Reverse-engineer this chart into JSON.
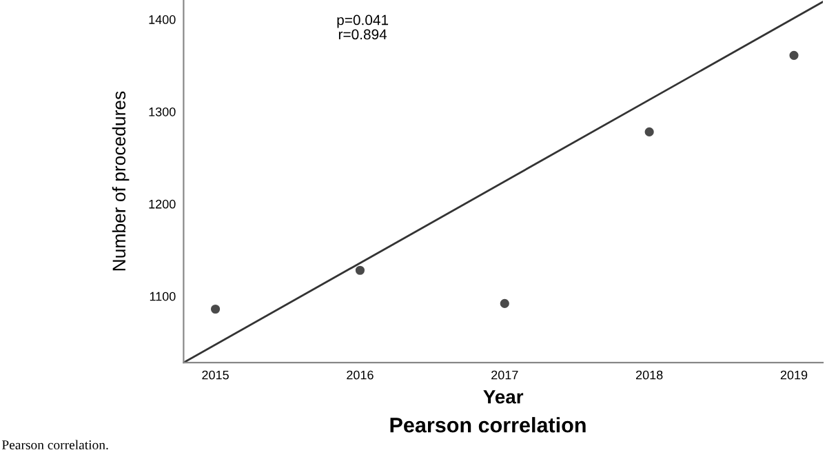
{
  "chart_data": {
    "type": "scatter",
    "xlabel": "Year",
    "ylabel": "Number of procedures",
    "x": [
      2015,
      2016,
      2017,
      2018,
      2019
    ],
    "series": [
      {
        "color": "#4a4a4a",
        "marker": "circle",
        "values": [
          1086,
          1128,
          1092,
          1278,
          1361
        ]
      },
      {
        "type": "line",
        "color": "#333333",
        "line_style": "solid",
        "marker": "none",
        "x": [
          2014.78,
          2019.2
        ],
        "values": [
          1028,
          1419
        ]
      }
    ],
    "xlim": [
      2014.78,
      2019.2
    ],
    "ylim": [
      1028,
      1421
    ],
    "xticks": [
      2015,
      2016,
      2017,
      2018,
      2019
    ],
    "yticks": [
      1100,
      1200,
      1300,
      1400
    ],
    "grid": false,
    "legend": false,
    "annotations": [
      "p=0.041\nr=0.894",
      "Pearson correlation",
      "Pearson correlation."
    ]
  }
}
